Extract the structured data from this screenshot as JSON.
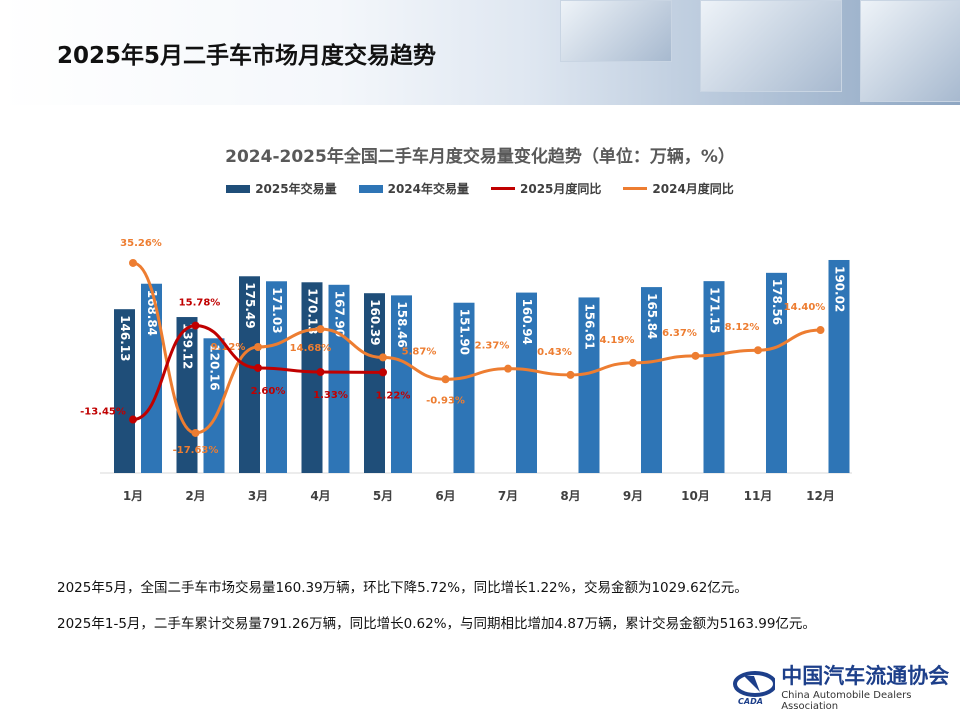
{
  "header": {
    "title": "2025年5月二手车市场月度交易趋势"
  },
  "chart_data": {
    "type": "bar+line",
    "title": "2024-2025年全国二手车月度交易量变化趋势（单位：万辆，%）",
    "categories": [
      "1月",
      "2月",
      "3月",
      "4月",
      "5月",
      "6月",
      "7月",
      "8月",
      "9月",
      "10月",
      "11月",
      "12月"
    ],
    "legend_position": "top",
    "series": [
      {
        "name": "2025年交易量",
        "type": "bar",
        "color": "#1f4e79",
        "values": [
          146.13,
          139.12,
          175.49,
          170.13,
          160.39,
          null,
          null,
          null,
          null,
          null,
          null,
          null
        ],
        "labels": [
          "146.13",
          "139.12",
          "175.49",
          "170.13",
          "160.39"
        ]
      },
      {
        "name": "2024年交易量",
        "type": "bar",
        "color": "#2e75b6",
        "values": [
          168.84,
          120.16,
          171.03,
          167.9,
          158.46,
          151.9,
          160.94,
          156.61,
          165.84,
          171.15,
          178.56,
          190.02
        ],
        "labels": [
          "168.84",
          "120.16",
          "171.03",
          "167.90",
          "158.46",
          "151.90",
          "160.94",
          "156.61",
          "165.84",
          "171.15",
          "178.56",
          "190.02"
        ]
      },
      {
        "name": "2025月度同比",
        "type": "line",
        "color": "#c00000",
        "values": [
          -13.45,
          15.78,
          2.6,
          1.33,
          1.22,
          null,
          null,
          null,
          null,
          null,
          null,
          null
        ],
        "labels": [
          "-13.45%",
          "15.78%",
          "2.60%",
          "1.33%",
          "1.22%"
        ]
      },
      {
        "name": "2024月度同比",
        "type": "line",
        "color": "#ed7d31",
        "values": [
          35.26,
          -17.63,
          9.12,
          14.68,
          5.87,
          -0.93,
          2.37,
          0.43,
          4.19,
          6.37,
          8.12,
          14.4
        ],
        "labels": [
          "35.26%",
          "-17.63%",
          "9.12%",
          "14.68%",
          "5.87%",
          "-0.93%",
          "2.37%",
          "0.43%",
          "4.19%",
          "6.37%",
          "8.12%",
          "14.40%"
        ]
      }
    ],
    "grid": false
  },
  "notes": [
    "2025年5月，全国二手车市场交易量160.39万辆，环比下降5.72%，同比增长1.22%，交易金额为1029.62亿元。",
    "2025年1-5月，二手车累计交易量791.26万辆，同比增长0.62%，与同期相比增加4.87万辆，累计交易金额为5163.99亿元。"
  ],
  "logo": {
    "cn": "中国汽车流通协会",
    "en": "China Automobile Dealers Association",
    "mark": "CADA"
  }
}
